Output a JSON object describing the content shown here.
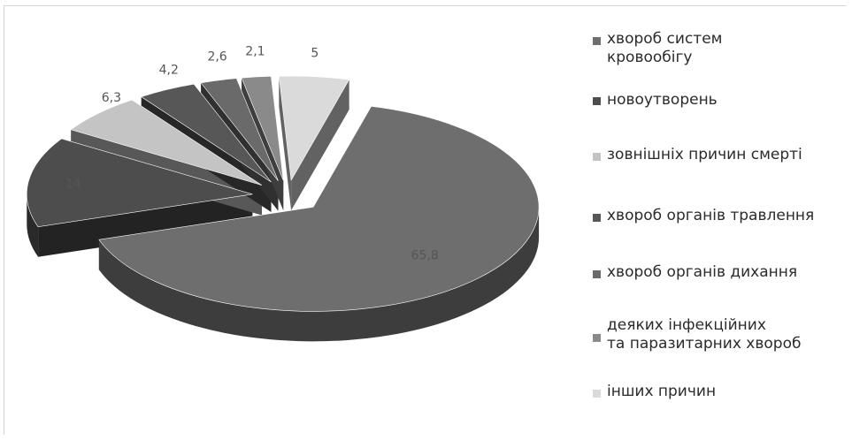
{
  "chart_data": {
    "type": "pie",
    "style": "3d-exploded",
    "legend_position": "right",
    "slices": [
      {
        "label": "хвороб систем\nкровообігу",
        "value": 65.8,
        "value_label": "65,8",
        "color": "#6e6e6e"
      },
      {
        "label": "новоутворень",
        "value": 14,
        "value_label": "14",
        "color": "#4d4d4d"
      },
      {
        "label": "зовнішніх причин смерті",
        "value": 6.3,
        "value_label": "6,3",
        "color": "#c4c4c4"
      },
      {
        "label": "хвороб органів травлення",
        "value": 4.2,
        "value_label": "4,2",
        "color": "#575757"
      },
      {
        "label": "хвороб органів дихання",
        "value": 2.6,
        "value_label": "2,6",
        "color": "#6a6a6a"
      },
      {
        "label": "деяких інфекційних\nта паразитарних хвороб",
        "value": 2.1,
        "value_label": "2,1",
        "color": "#8a8a8a"
      },
      {
        "label": "інших  причин",
        "value": 5,
        "value_label": "5",
        "color": "#dadada"
      }
    ]
  }
}
